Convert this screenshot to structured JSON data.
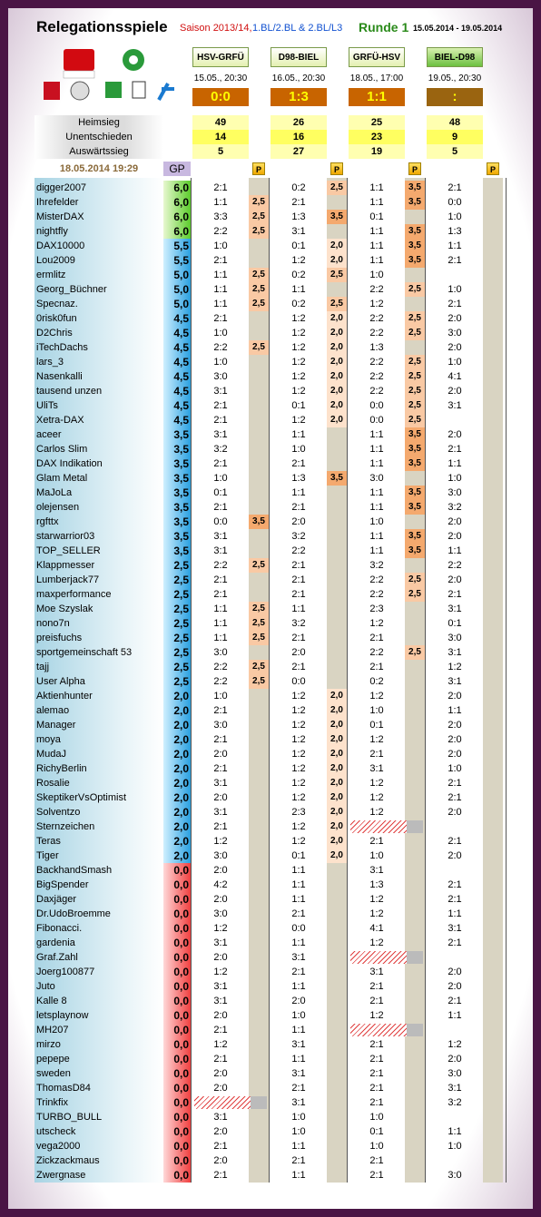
{
  "header": {
    "title": "Relegationsspiele",
    "season": "Saison 2013/14,",
    "leagues": "1.BL/2.BL & 2.BL/L3",
    "round": "Runde 1",
    "period": "15.05.2014 - 19.05.2014"
  },
  "matches": [
    {
      "name": "HSV-GRFÜ",
      "date": "15.05., 20:30",
      "score": "0:0",
      "home": 49,
      "draw": 14,
      "away": 5
    },
    {
      "name": "D98-BIEL",
      "date": "16.05., 20:30",
      "score": "1:3",
      "home": 26,
      "draw": 16,
      "away": 27
    },
    {
      "name": "GRFÜ-HSV",
      "date": "18.05., 17:00",
      "score": "1:1",
      "home": 25,
      "draw": 23,
      "away": 19
    },
    {
      "name": "BIEL-D98",
      "date": "19.05., 20:30",
      "score": ":",
      "home": 48,
      "draw": 9,
      "away": 5
    }
  ],
  "stats_labels": [
    "Heimsieg",
    "Unentschieden",
    "Auswärtssieg"
  ],
  "table": {
    "timestamp": "18.05.2014 19:29",
    "gp_header": "GP",
    "points_header": "P",
    "rows": [
      [
        "digger2007",
        "6,0",
        "2:1",
        null,
        "0:2",
        "2,5",
        "1:1",
        "3,5",
        "2:1",
        null
      ],
      [
        "Ihrefelder",
        "6,0",
        "1:1",
        "2,5",
        "2:1",
        null,
        "1:1",
        "3,5",
        "0:0",
        null
      ],
      [
        "MisterDAX",
        "6,0",
        "3:3",
        "2,5",
        "1:3",
        "3,5",
        "0:1",
        null,
        "1:0",
        null
      ],
      [
        "nightfly",
        "6,0",
        "2:2",
        "2,5",
        "3:1",
        null,
        "1:1",
        "3,5",
        "1:3",
        null
      ],
      [
        "DAX10000",
        "5,5",
        "1:0",
        null,
        "0:1",
        "2,0",
        "1:1",
        "3,5",
        "1:1",
        null
      ],
      [
        "Lou2009",
        "5,5",
        "2:1",
        null,
        "1:2",
        "2,0",
        "1:1",
        "3,5",
        "2:1",
        null
      ],
      [
        "ermlitz",
        "5,0",
        "1:1",
        "2,5",
        "0:2",
        "2,5",
        "1:0",
        null,
        null,
        null
      ],
      [
        "Georg_Büchner",
        "5,0",
        "1:1",
        "2,5",
        "1:1",
        null,
        "2:2",
        "2,5",
        "1:0",
        null
      ],
      [
        "Specnaz.",
        "5,0",
        "1:1",
        "2,5",
        "0:2",
        "2,5",
        "1:2",
        null,
        "2:1",
        null
      ],
      [
        "0risk0fun",
        "4,5",
        "2:1",
        null,
        "1:2",
        "2,0",
        "2:2",
        "2,5",
        "2:0",
        null
      ],
      [
        "D2Chris",
        "4,5",
        "1:0",
        null,
        "1:2",
        "2,0",
        "2:2",
        "2,5",
        "3:0",
        null
      ],
      [
        "iTechDachs",
        "4,5",
        "2:2",
        "2,5",
        "1:2",
        "2,0",
        "1:3",
        null,
        "2:0",
        null
      ],
      [
        "lars_3",
        "4,5",
        "1:0",
        null,
        "1:2",
        "2,0",
        "2:2",
        "2,5",
        "1:0",
        null
      ],
      [
        "Nasenkalli",
        "4,5",
        "3:0",
        null,
        "1:2",
        "2,0",
        "2:2",
        "2,5",
        "4:1",
        null
      ],
      [
        "tausend unzen",
        "4,5",
        "3:1",
        null,
        "1:2",
        "2,0",
        "2:2",
        "2,5",
        "2:0",
        null
      ],
      [
        "UliTs",
        "4,5",
        "2:1",
        null,
        "0:1",
        "2,0",
        "0:0",
        "2,5",
        "3:1",
        null
      ],
      [
        "Xetra-DAX",
        "4,5",
        "2:1",
        null,
        "1:2",
        "2,0",
        "0:0",
        "2,5",
        null,
        null
      ],
      [
        "aceer",
        "3,5",
        "3:1",
        null,
        "1:1",
        null,
        "1:1",
        "3,5",
        "2:0",
        null
      ],
      [
        "Carlos Slim",
        "3,5",
        "3:2",
        null,
        "1:0",
        null,
        "1:1",
        "3,5",
        "2:1",
        null
      ],
      [
        "DAX Indikation",
        "3,5",
        "2:1",
        null,
        "2:1",
        null,
        "1:1",
        "3,5",
        "1:1",
        null
      ],
      [
        "Glam Metal",
        "3,5",
        "1:0",
        null,
        "1:3",
        "3,5",
        "3:0",
        null,
        "1:0",
        null
      ],
      [
        "MaJoLa",
        "3,5",
        "0:1",
        null,
        "1:1",
        null,
        "1:1",
        "3,5",
        "3:0",
        null
      ],
      [
        "olejensen",
        "3,5",
        "2:1",
        null,
        "2:1",
        null,
        "1:1",
        "3,5",
        "3:2",
        null
      ],
      [
        "rgfttx",
        "3,5",
        "0:0",
        "3,5",
        "2:0",
        null,
        "1:0",
        null,
        "2:0",
        null
      ],
      [
        "starwarrior03",
        "3,5",
        "3:1",
        null,
        "3:2",
        null,
        "1:1",
        "3,5",
        "2:0",
        null
      ],
      [
        "TOP_SELLER",
        "3,5",
        "3:1",
        null,
        "2:2",
        null,
        "1:1",
        "3,5",
        "1:1",
        null
      ],
      [
        "Klappmesser",
        "2,5",
        "2:2",
        "2,5",
        "2:1",
        null,
        "3:2",
        null,
        "2:2",
        null
      ],
      [
        "Lumberjack77",
        "2,5",
        "2:1",
        null,
        "2:1",
        null,
        "2:2",
        "2,5",
        "2:0",
        null
      ],
      [
        "maxperformance",
        "2,5",
        "2:1",
        null,
        "2:1",
        null,
        "2:2",
        "2,5",
        "2:1",
        null
      ],
      [
        "Moe Szyslak",
        "2,5",
        "1:1",
        "2,5",
        "1:1",
        null,
        "2:3",
        null,
        "3:1",
        null
      ],
      [
        "nono7n",
        "2,5",
        "1:1",
        "2,5",
        "3:2",
        null,
        "1:2",
        null,
        "0:1",
        null
      ],
      [
        "preisfuchs",
        "2,5",
        "1:1",
        "2,5",
        "2:1",
        null,
        "2:1",
        null,
        "3:0",
        null
      ],
      [
        "sportgemeinschaft 53",
        "2,5",
        "3:0",
        null,
        "2:0",
        null,
        "2:2",
        "2,5",
        "3:1",
        null
      ],
      [
        "tajj",
        "2,5",
        "2:2",
        "2,5",
        "2:1",
        null,
        "2:1",
        null,
        "1:2",
        null
      ],
      [
        "User Alpha",
        "2,5",
        "2:2",
        "2,5",
        "0:0",
        null,
        "0:2",
        null,
        "3:1",
        null
      ],
      [
        "Aktienhunter",
        "2,0",
        "1:0",
        null,
        "1:2",
        "2,0",
        "1:2",
        null,
        "2:0",
        null
      ],
      [
        "alemao",
        "2,0",
        "2:1",
        null,
        "1:2",
        "2,0",
        "1:0",
        null,
        "1:1",
        null
      ],
      [
        "Manager",
        "2,0",
        "3:0",
        null,
        "1:2",
        "2,0",
        "0:1",
        null,
        "2:0",
        null
      ],
      [
        "moya",
        "2,0",
        "2:1",
        null,
        "1:2",
        "2,0",
        "1:2",
        null,
        "2:0",
        null
      ],
      [
        "MudaJ",
        "2,0",
        "2:0",
        null,
        "1:2",
        "2,0",
        "2:1",
        null,
        "2:0",
        null
      ],
      [
        "RichyBerlin",
        "2,0",
        "2:1",
        null,
        "1:2",
        "2,0",
        "3:1",
        null,
        "1:0",
        null
      ],
      [
        "Rosalie",
        "2,0",
        "3:1",
        null,
        "1:2",
        "2,0",
        "1:2",
        null,
        "2:1",
        null
      ],
      [
        "SkeptikerVsOptimist",
        "2,0",
        "2:0",
        null,
        "1:2",
        "2,0",
        "1:2",
        null,
        "2:1",
        null
      ],
      [
        "Solventzo",
        "2,0",
        "3:1",
        null,
        "2:3",
        "2,0",
        "1:2",
        null,
        "2:0",
        null
      ],
      [
        "Sternzeichen",
        "2,0",
        "2:1",
        null,
        "1:2",
        "2,0",
        null,
        null,
        null,
        null
      ],
      [
        "Teras",
        "2,0",
        "1:2",
        null,
        "1:2",
        "2,0",
        "2:1",
        null,
        "2:1",
        null
      ],
      [
        "Tiger",
        "2,0",
        "3:0",
        null,
        "0:1",
        "2,0",
        "1:0",
        null,
        "2:0",
        null
      ],
      [
        "BackhandSmash",
        "0,0",
        "2:0",
        null,
        "1:1",
        null,
        "3:1",
        null,
        null,
        null
      ],
      [
        "BigSpender",
        "0,0",
        "4:2",
        null,
        "1:1",
        null,
        "1:3",
        null,
        "2:1",
        null
      ],
      [
        "Daxjäger",
        "0,0",
        "2:0",
        null,
        "1:1",
        null,
        "1:2",
        null,
        "2:1",
        null
      ],
      [
        "Dr.UdoBroemme",
        "0,0",
        "3:0",
        null,
        "2:1",
        null,
        "1:2",
        null,
        "1:1",
        null
      ],
      [
        "Fibonacci.",
        "0,0",
        "1:2",
        null,
        "0:0",
        null,
        "4:1",
        null,
        "3:1",
        null
      ],
      [
        "gardenia",
        "0,0",
        "3:1",
        null,
        "1:1",
        null,
        "1:2",
        null,
        "2:1",
        null
      ],
      [
        "Graf.Zahl",
        "0,0",
        "2:0",
        null,
        "3:1",
        null,
        null,
        null,
        null,
        null
      ],
      [
        "Joerg100877",
        "0,0",
        "1:2",
        null,
        "2:1",
        null,
        "3:1",
        null,
        "2:0",
        null
      ],
      [
        "Juto",
        "0,0",
        "3:1",
        null,
        "1:1",
        null,
        "2:1",
        null,
        "2:0",
        null
      ],
      [
        "Kalle 8",
        "0,0",
        "3:1",
        null,
        "2:0",
        null,
        "2:1",
        null,
        "2:1",
        null
      ],
      [
        "letsplaynow",
        "0,0",
        "2:0",
        null,
        "1:0",
        null,
        "1:2",
        null,
        "1:1",
        null
      ],
      [
        "MH207",
        "0,0",
        "2:1",
        null,
        "1:1",
        null,
        null,
        null,
        null,
        null
      ],
      [
        "mirzo",
        "0,0",
        "1:2",
        null,
        "3:1",
        null,
        "2:1",
        null,
        "1:2",
        null
      ],
      [
        "pepepe",
        "0,0",
        "2:1",
        null,
        "1:1",
        null,
        "2:1",
        null,
        "2:0",
        null
      ],
      [
        "sweden",
        "0,0",
        "2:0",
        null,
        "3:1",
        null,
        "2:1",
        null,
        "3:0",
        null
      ],
      [
        "ThomasD84",
        "0,0",
        "2:0",
        null,
        "2:1",
        null,
        "2:1",
        null,
        "3:1",
        null
      ],
      [
        "Trinkfix",
        "0,0",
        null,
        null,
        "3:1",
        null,
        "2:1",
        null,
        "3:2",
        null
      ],
      [
        "TURBO_BULL",
        "0,0",
        "3:1",
        null,
        "1:0",
        null,
        "1:0",
        null,
        null,
        null
      ],
      [
        "utscheck",
        "0,0",
        "2:0",
        null,
        "1:0",
        null,
        "0:1",
        null,
        "1:1",
        null
      ],
      [
        "vega2000",
        "0,0",
        "2:1",
        null,
        "1:1",
        null,
        "1:0",
        null,
        "1:0",
        null
      ],
      [
        "Zickzackmaus",
        "0,0",
        "2:0",
        null,
        "2:1",
        null,
        "2:1",
        null,
        null,
        null
      ],
      [
        "Zwergnase",
        "0,0",
        "2:1",
        null,
        "1:1",
        null,
        "2:1",
        null,
        "3:0",
        null
      ]
    ]
  }
}
